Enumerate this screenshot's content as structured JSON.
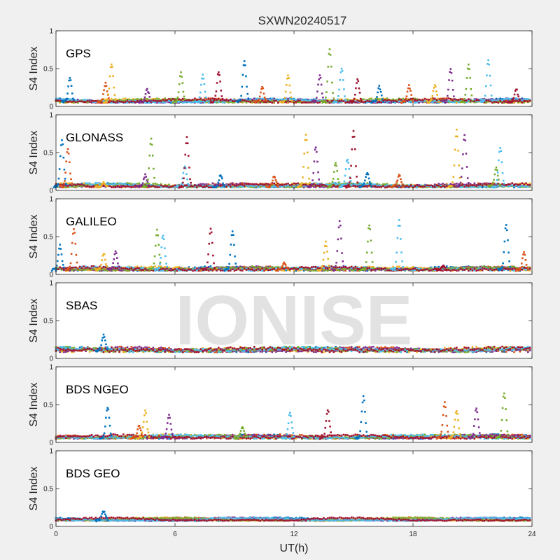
{
  "figure": {
    "title": "SXWN20240517",
    "watermark": "IONISE",
    "xlabel": "UT(h)",
    "ylabel": "S4 Index",
    "series_colors": [
      "#0072BD",
      "#D95319",
      "#EDB120",
      "#7E2F8E",
      "#77AC30",
      "#4DBEEE",
      "#A2142F"
    ]
  },
  "chart_data": [
    {
      "type": "scatter",
      "label": "GPS",
      "xlim": [
        0,
        24
      ],
      "ylim": [
        0,
        1
      ],
      "xticks": [
        0,
        6,
        12,
        18,
        24
      ],
      "yticks": [
        0,
        0.5,
        1
      ],
      "base": 0.06,
      "noise": 0.03,
      "peaks": [
        [
          0.7,
          0.38
        ],
        [
          2.5,
          0.3
        ],
        [
          2.8,
          0.57
        ],
        [
          4.6,
          0.22
        ],
        [
          6.3,
          0.44
        ],
        [
          7.4,
          0.42
        ],
        [
          8.2,
          0.46
        ],
        [
          9.5,
          0.6
        ],
        [
          10.4,
          0.25
        ],
        [
          11.7,
          0.4
        ],
        [
          13.3,
          0.4
        ],
        [
          13.8,
          0.77
        ],
        [
          14.4,
          0.51
        ],
        [
          15.2,
          0.35
        ],
        [
          16.3,
          0.26
        ],
        [
          17.8,
          0.27
        ],
        [
          19.1,
          0.28
        ],
        [
          19.9,
          0.49
        ],
        [
          20.8,
          0.55
        ],
        [
          21.8,
          0.62
        ],
        [
          23.2,
          0.23
        ]
      ]
    },
    {
      "type": "scatter",
      "label": "GLONASS",
      "xlim": [
        0,
        24
      ],
      "ylim": [
        0,
        1
      ],
      "xticks": [
        0,
        6,
        12,
        18,
        24
      ],
      "yticks": [
        0,
        0.5,
        1
      ],
      "base": 0.05,
      "noise": 0.03,
      "peaks": [
        [
          0.3,
          0.67
        ],
        [
          0.6,
          0.55
        ],
        [
          2.4,
          0.1
        ],
        [
          4.5,
          0.2
        ],
        [
          4.8,
          0.68
        ],
        [
          6.5,
          0.32
        ],
        [
          6.6,
          0.7
        ],
        [
          8.3,
          0.2
        ],
        [
          11.0,
          0.18
        ],
        [
          12.6,
          0.75
        ],
        [
          13.1,
          0.58
        ],
        [
          14.1,
          0.35
        ],
        [
          14.7,
          0.42
        ],
        [
          15.0,
          0.8
        ],
        [
          15.7,
          0.24
        ],
        [
          17.3,
          0.2
        ],
        [
          20.2,
          0.8
        ],
        [
          20.6,
          0.74
        ],
        [
          22.2,
          0.3
        ],
        [
          22.4,
          0.57
        ]
      ]
    },
    {
      "type": "scatter",
      "label": "GALILEO",
      "xlim": [
        0,
        24
      ],
      "ylim": [
        0,
        1
      ],
      "xticks": [
        0,
        6,
        12,
        18,
        24
      ],
      "yticks": [
        0,
        0.5,
        1
      ],
      "base": 0.06,
      "noise": 0.03,
      "peaks": [
        [
          0.2,
          0.38
        ],
        [
          0.9,
          0.6
        ],
        [
          2.4,
          0.28
        ],
        [
          3.0,
          0.3
        ],
        [
          5.1,
          0.58
        ],
        [
          5.4,
          0.52
        ],
        [
          7.8,
          0.6
        ],
        [
          8.9,
          0.56
        ],
        [
          11.5,
          0.15
        ],
        [
          13.6,
          0.42
        ],
        [
          14.3,
          0.7
        ],
        [
          15.8,
          0.66
        ],
        [
          17.3,
          0.72
        ],
        [
          19.5,
          0.12
        ],
        [
          22.7,
          0.66
        ],
        [
          23.6,
          0.28
        ]
      ]
    },
    {
      "type": "scatter",
      "label": "SBAS",
      "xlim": [
        0,
        24
      ],
      "ylim": [
        0,
        1
      ],
      "xticks": [
        0,
        6,
        12,
        18,
        24
      ],
      "yticks": [
        0,
        0.5,
        1
      ],
      "base": 0.1,
      "noise": 0.045,
      "peaks": [
        [
          2.4,
          0.31
        ]
      ]
    },
    {
      "type": "scatter",
      "label": "BDS NGEO",
      "xlim": [
        0,
        24
      ],
      "ylim": [
        0,
        1
      ],
      "xticks": [
        0,
        6,
        12,
        18,
        24
      ],
      "yticks": [
        0,
        0.5,
        1
      ],
      "base": 0.06,
      "noise": 0.03,
      "peaks": [
        [
          2.6,
          0.47
        ],
        [
          4.2,
          0.22
        ],
        [
          4.5,
          0.41
        ],
        [
          5.7,
          0.37
        ],
        [
          9.4,
          0.2
        ],
        [
          11.8,
          0.38
        ],
        [
          13.7,
          0.43
        ],
        [
          15.5,
          0.6
        ],
        [
          19.6,
          0.52
        ],
        [
          20.2,
          0.42
        ],
        [
          21.2,
          0.45
        ],
        [
          22.6,
          0.66
        ]
      ]
    },
    {
      "type": "scatter",
      "label": "BDS GEO",
      "xlim": [
        0,
        24
      ],
      "ylim": [
        0,
        1
      ],
      "xticks": [
        0,
        6,
        12,
        18,
        24
      ],
      "yticks": [
        0,
        0.5,
        1
      ],
      "base": 0.08,
      "noise": 0.02,
      "peaks": [
        [
          2.4,
          0.2
        ]
      ]
    }
  ]
}
